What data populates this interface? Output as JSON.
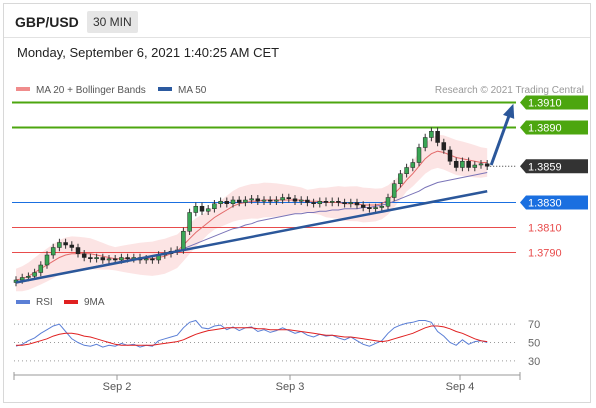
{
  "header": {
    "symbol": "GBP/USD",
    "timeframe": "30 MIN"
  },
  "datetime": "Monday, September 6, 2021 1:40:25 AM CET",
  "chart_data": [
    {
      "type": "candlestick",
      "legend": [
        {
          "name": "MA 20 + Bollinger Bands",
          "color": "#f08c8c"
        },
        {
          "name": "MA 50",
          "color": "#2c5aa0"
        }
      ],
      "watermark": "Research © 2021 Trading Central",
      "x_ticks": [
        "Sep 2",
        "Sep 3",
        "Sep 4"
      ],
      "ylim": [
        1.376,
        1.392
      ],
      "levels": [
        {
          "value": 1.391,
          "label": "1.3910",
          "kind": "resistance",
          "color": "#4ca60f"
        },
        {
          "value": 1.389,
          "label": "1.3890",
          "kind": "resistance",
          "color": "#4ca60f"
        },
        {
          "value": 1.3859,
          "label": "1.3859",
          "kind": "last-price",
          "color": "#333333"
        },
        {
          "value": 1.383,
          "label": "1.3830",
          "kind": "pivot",
          "color": "#1a6fe0"
        },
        {
          "value": 1.381,
          "label": "1.3810",
          "kind": "support",
          "color": "#e84c4c"
        },
        {
          "value": 1.379,
          "label": "1.3790",
          "kind": "support",
          "color": "#e84c4c"
        }
      ],
      "trendline": [
        [
          0,
          1.3766
        ],
        [
          76,
          1.3839
        ]
      ],
      "close": [
        1.3768,
        1.377,
        1.3771,
        1.3774,
        1.378,
        1.3788,
        1.3794,
        1.3798,
        1.3796,
        1.3794,
        1.3789,
        1.3786,
        1.3785,
        1.3786,
        1.3784,
        1.3785,
        1.3784,
        1.3786,
        1.3785,
        1.3786,
        1.3784,
        1.3785,
        1.3784,
        1.3788,
        1.3789,
        1.3791,
        1.3792,
        1.3807,
        1.3822,
        1.3827,
        1.3823,
        1.3825,
        1.3829,
        1.3831,
        1.3829,
        1.3832,
        1.383,
        1.3832,
        1.3833,
        1.3831,
        1.3832,
        1.3831,
        1.3832,
        1.3834,
        1.3833,
        1.3831,
        1.3832,
        1.383,
        1.3829,
        1.3831,
        1.383,
        1.3831,
        1.383,
        1.3829,
        1.383,
        1.3828,
        1.3826,
        1.3825,
        1.3826,
        1.3827,
        1.3834,
        1.3845,
        1.3853,
        1.3858,
        1.3862,
        1.3874,
        1.3882,
        1.3887,
        1.3878,
        1.3872,
        1.3863,
        1.3858,
        1.3863,
        1.3858,
        1.386,
        1.3861,
        1.3859
      ],
      "ma20": [
        1.3768,
        1.3769,
        1.3771,
        1.3774,
        1.3777,
        1.378,
        1.3783,
        1.3786,
        1.3788,
        1.3789,
        1.3789,
        1.3789,
        1.3789,
        1.3788,
        1.3787,
        1.3786,
        1.3785,
        1.3785,
        1.3785,
        1.3785,
        1.3785,
        1.3785,
        1.3785,
        1.3786,
        1.3787,
        1.3789,
        1.3791,
        1.3796,
        1.3801,
        1.3806,
        1.381,
        1.3814,
        1.3818,
        1.3821,
        1.3824,
        1.3827,
        1.3829,
        1.383,
        1.3831,
        1.3831,
        1.3832,
        1.3832,
        1.3832,
        1.3832,
        1.3832,
        1.3832,
        1.3832,
        1.3831,
        1.3831,
        1.3831,
        1.383,
        1.383,
        1.383,
        1.3829,
        1.3829,
        1.3829,
        1.3828,
        1.3828,
        1.3828,
        1.3829,
        1.3832,
        1.3837,
        1.3842,
        1.3848,
        1.3853,
        1.3859,
        1.3865,
        1.3869,
        1.3871,
        1.387,
        1.3868,
        1.3866,
        1.3865,
        1.3864,
        1.3863,
        1.3862,
        1.3862
      ],
      "ma50": [
        1.3766,
        1.3767,
        1.3768,
        1.3769,
        1.377,
        1.3771,
        1.3772,
        1.3773,
        1.3774,
        1.3775,
        1.3776,
        1.3777,
        1.3778,
        1.3779,
        1.378,
        1.3781,
        1.3782,
        1.3783,
        1.3784,
        1.3784,
        1.3785,
        1.3786,
        1.3787,
        1.3788,
        1.3789,
        1.379,
        1.3791,
        1.3793,
        1.3795,
        1.3797,
        1.3799,
        1.3801,
        1.3803,
        1.3805,
        1.3807,
        1.3809,
        1.381,
        1.3812,
        1.3813,
        1.3815,
        1.3816,
        1.3817,
        1.3818,
        1.3819,
        1.382,
        1.3821,
        1.3821,
        1.3822,
        1.3822,
        1.3823,
        1.3823,
        1.3824,
        1.3824,
        1.3825,
        1.3825,
        1.3825,
        1.3826,
        1.3826,
        1.3827,
        1.3828,
        1.3829,
        1.3831,
        1.3833,
        1.3835,
        1.3837,
        1.3839,
        1.3842,
        1.3844,
        1.3846,
        1.3847,
        1.3848,
        1.3849,
        1.385,
        1.3851,
        1.3852,
        1.3853,
        1.3854
      ]
    },
    {
      "type": "line",
      "legend": [
        {
          "name": "RSI",
          "color": "#5b7fd6"
        },
        {
          "name": "9MA",
          "color": "#e02020"
        }
      ],
      "ylim": [
        20,
        80
      ],
      "y_ticks": [
        "70",
        "50",
        "30"
      ],
      "rsi": [
        46,
        48,
        52,
        55,
        60,
        64,
        68,
        70,
        62,
        54,
        50,
        47,
        46,
        48,
        45,
        47,
        46,
        49,
        47,
        48,
        45,
        47,
        46,
        52,
        54,
        56,
        58,
        66,
        72,
        74,
        66,
        65,
        68,
        69,
        64,
        67,
        63,
        66,
        67,
        62,
        64,
        61,
        63,
        66,
        63,
        60,
        62,
        58,
        56,
        59,
        57,
        58,
        55,
        53,
        56,
        52,
        48,
        46,
        49,
        52,
        60,
        66,
        69,
        71,
        72,
        74,
        74,
        72,
        62,
        57,
        50,
        47,
        53,
        48,
        51,
        52,
        50
      ],
      "ma9": [
        47,
        47,
        48,
        50,
        52,
        54,
        57,
        59,
        60,
        60,
        59,
        57,
        56,
        54,
        52,
        50,
        48,
        47,
        47,
        47,
        47,
        47,
        47,
        48,
        49,
        50,
        51,
        53,
        56,
        59,
        61,
        63,
        64,
        65,
        66,
        66,
        66,
        66,
        66,
        65,
        65,
        64,
        64,
        64,
        64,
        63,
        62,
        61,
        60,
        59,
        58,
        58,
        57,
        56,
        56,
        55,
        54,
        53,
        52,
        51,
        52,
        54,
        56,
        58,
        60,
        63,
        66,
        68,
        68,
        67,
        65,
        62,
        60,
        57,
        54,
        52,
        51
      ],
      "x_ticks": [
        "Sep 2",
        "Sep 3",
        "Sep 4"
      ]
    }
  ]
}
